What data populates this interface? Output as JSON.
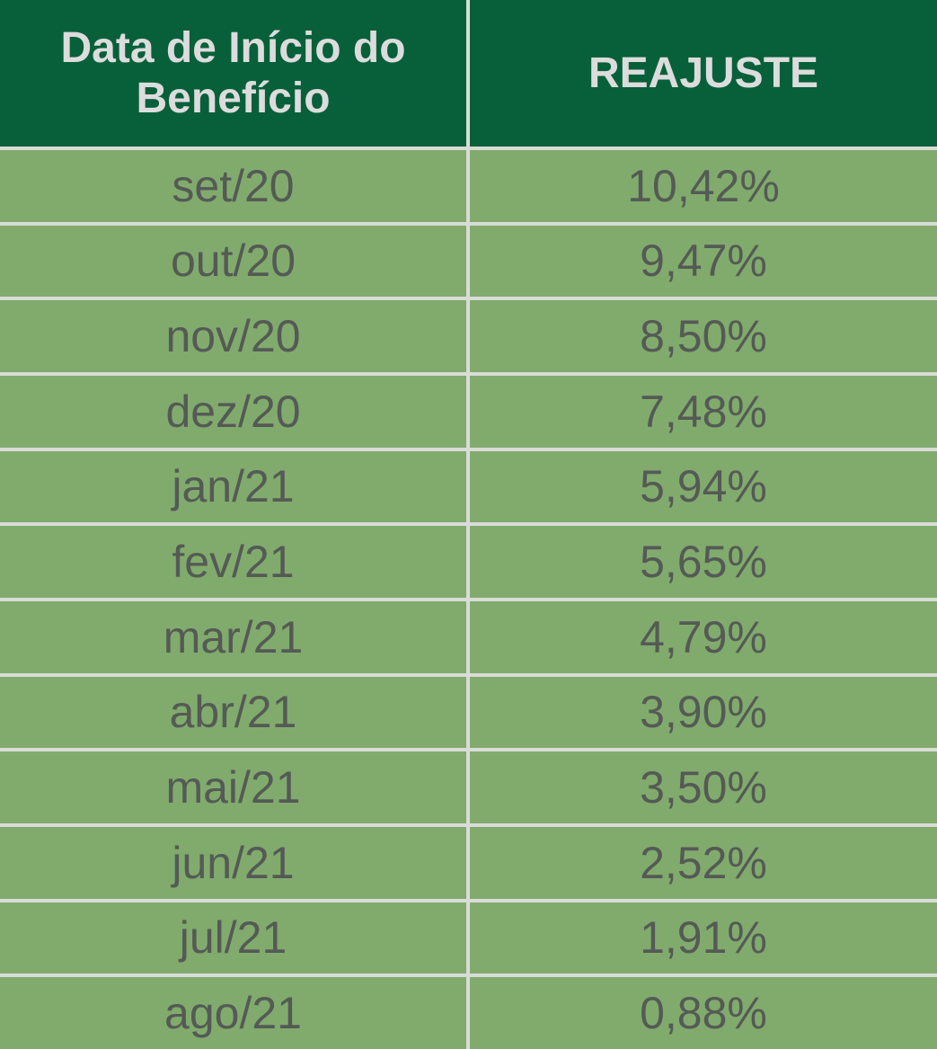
{
  "table": {
    "header": [
      "Data de Início do Benefício",
      "REAJUSTE"
    ],
    "rows": [
      [
        "set/20",
        "10,42%"
      ],
      [
        "out/20",
        "9,47%"
      ],
      [
        "nov/20",
        "8,50%"
      ],
      [
        "dez/20",
        "7,48%"
      ],
      [
        "jan/21",
        "5,94%"
      ],
      [
        "fev/21",
        "5,65%"
      ],
      [
        "mar/21",
        "4,79%"
      ],
      [
        "abr/21",
        "3,90%"
      ],
      [
        "mai/21",
        "3,50%"
      ],
      [
        "jun/21",
        "2,52%"
      ],
      [
        "jul/21",
        "1,91%"
      ],
      [
        "ago/21",
        "0,88%"
      ]
    ]
  }
}
